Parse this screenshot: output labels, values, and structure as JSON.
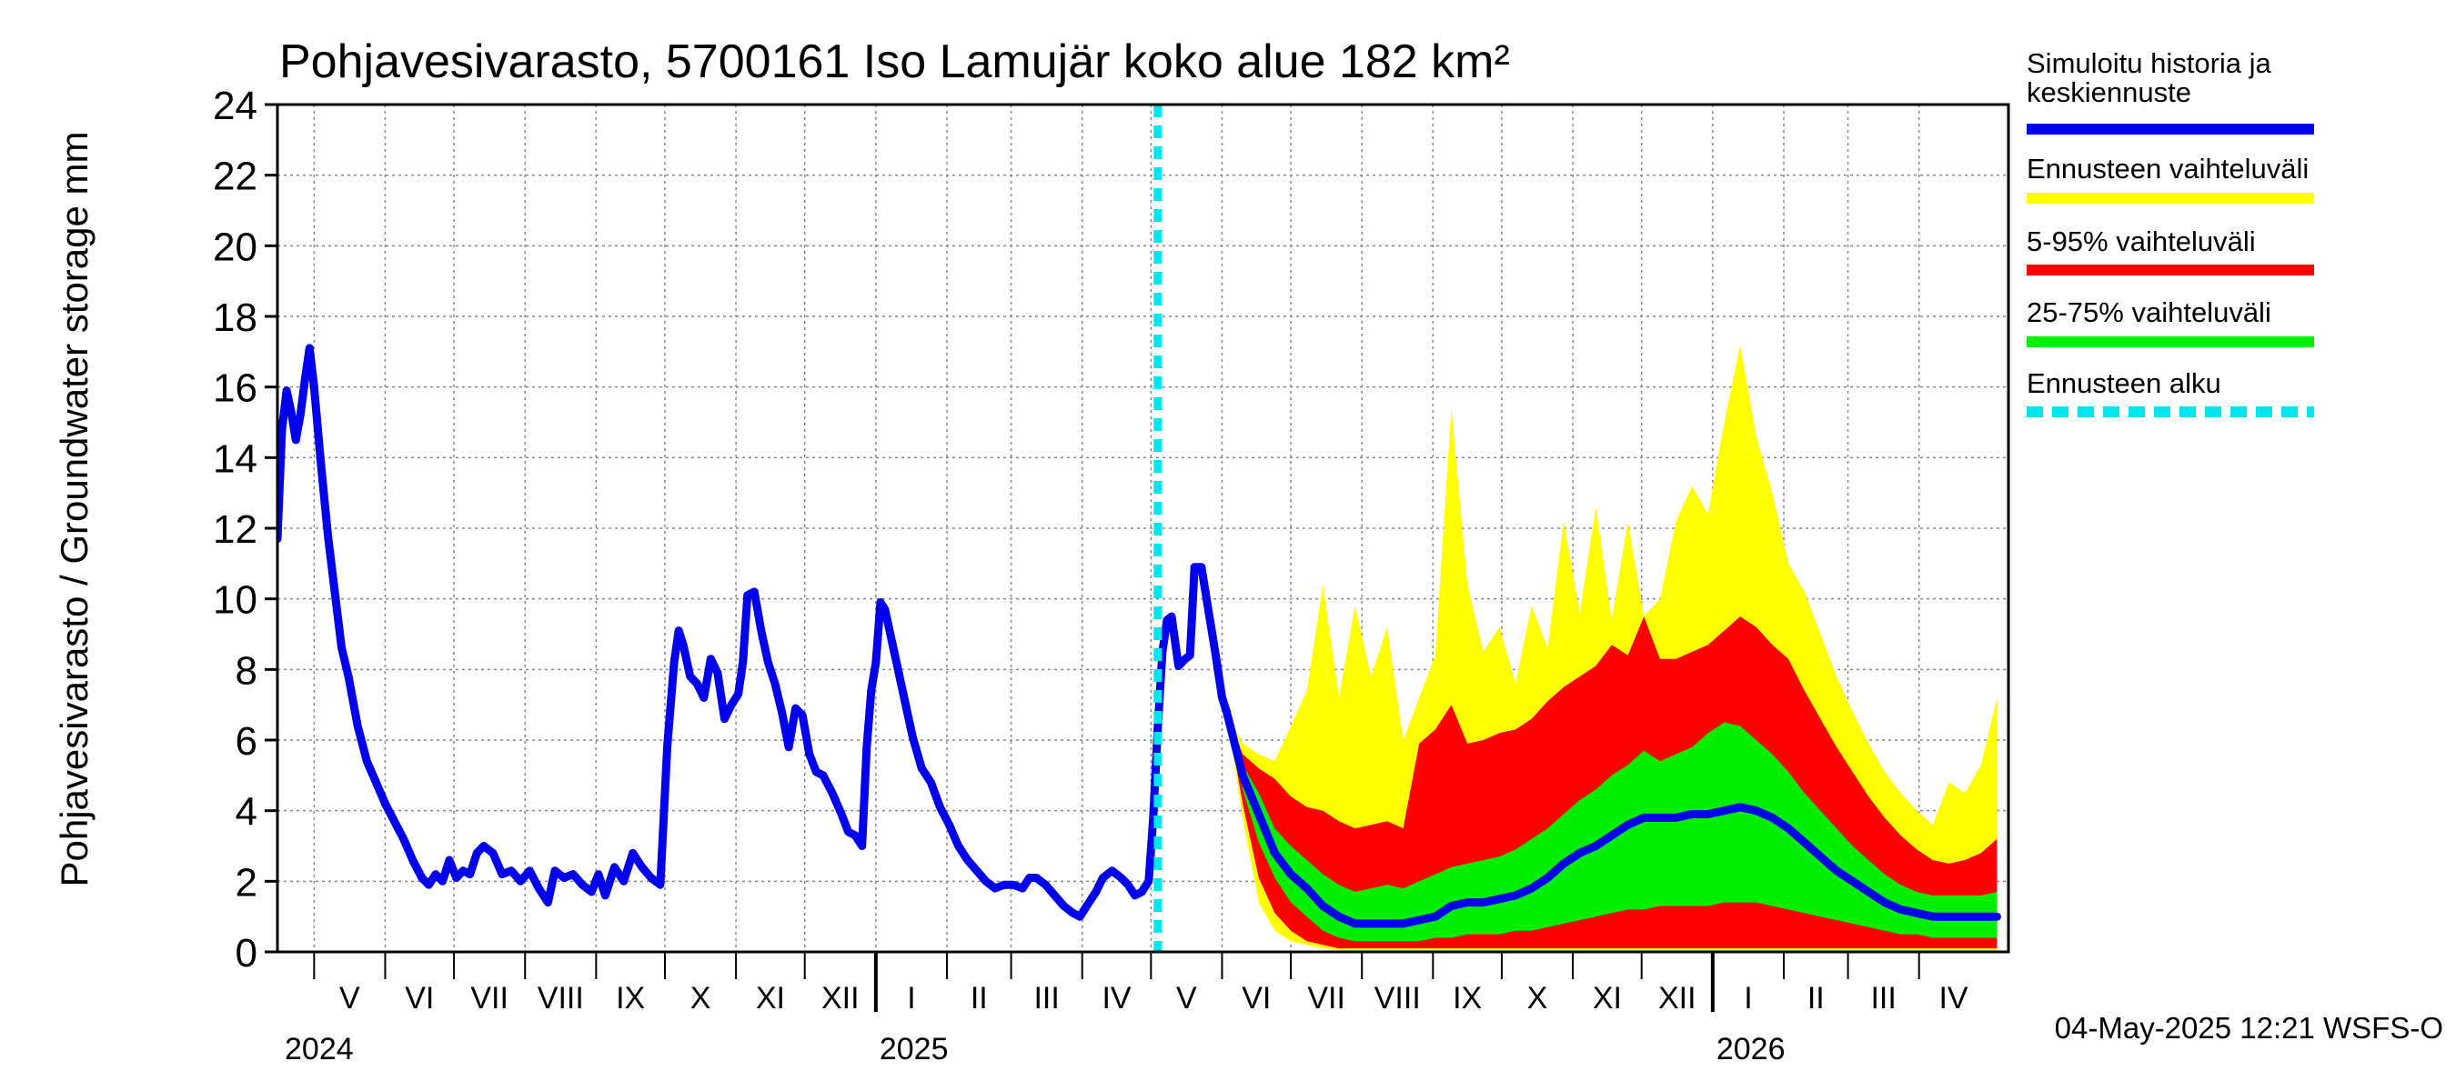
{
  "chart_data": {
    "type": "area",
    "title": "Pohjavesivarasto, 5700161 Iso Lamujär koko alue 182 km²",
    "ylabel": "Pohjavesivarasto / Groundwater storage   mm",
    "ylim": [
      0,
      24
    ],
    "yticks": [
      "0",
      "2",
      "4",
      "6",
      "8",
      "10",
      "12",
      "14",
      "16",
      "18",
      "20",
      "22",
      "24"
    ],
    "grid": true,
    "xlim": [
      "2024-04-15",
      "2026-05-10"
    ],
    "months": [
      {
        "label": "V",
        "start": "2024-05-01",
        "end": "2024-06-01"
      },
      {
        "label": "VI",
        "start": "2024-06-01",
        "end": "2024-07-01"
      },
      {
        "label": "VII",
        "start": "2024-07-01",
        "end": "2024-08-01"
      },
      {
        "label": "VIII",
        "start": "2024-08-01",
        "end": "2024-09-01"
      },
      {
        "label": "IX",
        "start": "2024-09-01",
        "end": "2024-10-01"
      },
      {
        "label": "X",
        "start": "2024-10-01",
        "end": "2024-11-01"
      },
      {
        "label": "XI",
        "start": "2024-11-01",
        "end": "2024-12-01"
      },
      {
        "label": "XII",
        "start": "2024-12-01",
        "end": "2025-01-01"
      },
      {
        "label": "I",
        "start": "2025-01-01",
        "end": "2025-02-01"
      },
      {
        "label": "II",
        "start": "2025-02-01",
        "end": "2025-03-01"
      },
      {
        "label": "III",
        "start": "2025-03-01",
        "end": "2025-04-01"
      },
      {
        "label": "IV",
        "start": "2025-04-01",
        "end": "2025-05-01"
      },
      {
        "label": "V",
        "start": "2025-05-01",
        "end": "2025-06-01"
      },
      {
        "label": "VI",
        "start": "2025-06-01",
        "end": "2025-07-01"
      },
      {
        "label": "VII",
        "start": "2025-07-01",
        "end": "2025-08-01"
      },
      {
        "label": "VIII",
        "start": "2025-08-01",
        "end": "2025-09-01"
      },
      {
        "label": "IX",
        "start": "2025-09-01",
        "end": "2025-10-01"
      },
      {
        "label": "X",
        "start": "2025-10-01",
        "end": "2025-11-01"
      },
      {
        "label": "XI",
        "start": "2025-11-01",
        "end": "2025-12-01"
      },
      {
        "label": "XII",
        "start": "2025-12-01",
        "end": "2026-01-01"
      },
      {
        "label": "I",
        "start": "2026-01-01",
        "end": "2026-02-01"
      },
      {
        "label": "II",
        "start": "2026-02-01",
        "end": "2026-03-01"
      },
      {
        "label": "III",
        "start": "2026-03-01",
        "end": "2026-04-01"
      },
      {
        "label": "IV",
        "start": "2026-04-01",
        "end": "2026-05-01"
      }
    ],
    "years": [
      {
        "label": "2024",
        "date": "2024-04-15"
      },
      {
        "label": "2025",
        "date": "2025-01-01"
      },
      {
        "label": "2026",
        "date": "2026-01-01"
      }
    ],
    "forecast_start": "2025-05-04",
    "history": {
      "name": "Simuloitu historia ja keskiennuste",
      "color": "#0000ee",
      "points": [
        [
          "2024-04-15",
          11.7
        ],
        [
          "2024-04-17",
          14.8
        ],
        [
          "2024-04-19",
          15.9
        ],
        [
          "2024-04-21",
          15.3
        ],
        [
          "2024-04-23",
          14.5
        ],
        [
          "2024-04-25",
          15.2
        ],
        [
          "2024-04-27",
          16.2
        ],
        [
          "2024-04-29",
          17.1
        ],
        [
          "2024-05-01",
          16.0
        ],
        [
          "2024-05-04",
          13.8
        ],
        [
          "2024-05-07",
          11.8
        ],
        [
          "2024-05-10",
          10.2
        ],
        [
          "2024-05-13",
          8.6
        ],
        [
          "2024-05-16",
          7.8
        ],
        [
          "2024-05-20",
          6.4
        ],
        [
          "2024-05-24",
          5.4
        ],
        [
          "2024-05-28",
          4.8
        ],
        [
          "2024-06-01",
          4.2
        ],
        [
          "2024-06-05",
          3.7
        ],
        [
          "2024-06-09",
          3.2
        ],
        [
          "2024-06-13",
          2.6
        ],
        [
          "2024-06-17",
          2.1
        ],
        [
          "2024-06-20",
          1.9
        ],
        [
          "2024-06-23",
          2.2
        ],
        [
          "2024-06-26",
          2.0
        ],
        [
          "2024-06-29",
          2.6
        ],
        [
          "2024-07-02",
          2.1
        ],
        [
          "2024-07-05",
          2.3
        ],
        [
          "2024-07-08",
          2.2
        ],
        [
          "2024-07-11",
          2.8
        ],
        [
          "2024-07-14",
          3.0
        ],
        [
          "2024-07-18",
          2.8
        ],
        [
          "2024-07-22",
          2.2
        ],
        [
          "2024-07-26",
          2.3
        ],
        [
          "2024-07-30",
          2.0
        ],
        [
          "2024-08-03",
          2.3
        ],
        [
          "2024-08-07",
          1.8
        ],
        [
          "2024-08-11",
          1.4
        ],
        [
          "2024-08-14",
          2.3
        ],
        [
          "2024-08-18",
          2.1
        ],
        [
          "2024-08-22",
          2.2
        ],
        [
          "2024-08-26",
          1.9
        ],
        [
          "2024-08-30",
          1.7
        ],
        [
          "2024-09-02",
          2.2
        ],
        [
          "2024-09-05",
          1.6
        ],
        [
          "2024-09-09",
          2.4
        ],
        [
          "2024-09-13",
          2.0
        ],
        [
          "2024-09-17",
          2.8
        ],
        [
          "2024-09-21",
          2.4
        ],
        [
          "2024-09-25",
          2.1
        ],
        [
          "2024-09-29",
          1.9
        ],
        [
          "2024-10-02",
          5.8
        ],
        [
          "2024-10-05",
          8.2
        ],
        [
          "2024-10-07",
          9.1
        ],
        [
          "2024-10-09",
          8.7
        ],
        [
          "2024-10-12",
          7.8
        ],
        [
          "2024-10-15",
          7.6
        ],
        [
          "2024-10-18",
          7.2
        ],
        [
          "2024-10-21",
          8.3
        ],
        [
          "2024-10-24",
          7.9
        ],
        [
          "2024-10-27",
          6.6
        ],
        [
          "2024-10-30",
          7.0
        ],
        [
          "2024-11-02",
          7.3
        ],
        [
          "2024-11-04",
          8.2
        ],
        [
          "2024-11-06",
          10.1
        ],
        [
          "2024-11-09",
          10.2
        ],
        [
          "2024-11-12",
          9.1
        ],
        [
          "2024-11-15",
          8.2
        ],
        [
          "2024-11-18",
          7.6
        ],
        [
          "2024-11-21",
          6.8
        ],
        [
          "2024-11-24",
          5.8
        ],
        [
          "2024-11-27",
          6.9
        ],
        [
          "2024-11-30",
          6.7
        ],
        [
          "2024-12-03",
          5.6
        ],
        [
          "2024-12-06",
          5.1
        ],
        [
          "2024-12-09",
          5.0
        ],
        [
          "2024-12-13",
          4.5
        ],
        [
          "2024-12-17",
          3.9
        ],
        [
          "2024-12-20",
          3.4
        ],
        [
          "2024-12-23",
          3.3
        ],
        [
          "2024-12-26",
          3.0
        ],
        [
          "2024-12-28",
          5.8
        ],
        [
          "2024-12-30",
          7.4
        ],
        [
          "2025-01-01",
          8.2
        ],
        [
          "2025-01-03",
          9.9
        ],
        [
          "2025-01-05",
          9.7
        ],
        [
          "2025-01-09",
          8.5
        ],
        [
          "2025-01-13",
          7.3
        ],
        [
          "2025-01-17",
          6.1
        ],
        [
          "2025-01-21",
          5.2
        ],
        [
          "2025-01-25",
          4.8
        ],
        [
          "2025-01-29",
          4.1
        ],
        [
          "2025-02-02",
          3.6
        ],
        [
          "2025-02-06",
          3.0
        ],
        [
          "2025-02-10",
          2.6
        ],
        [
          "2025-02-14",
          2.3
        ],
        [
          "2025-02-18",
          2.0
        ],
        [
          "2025-02-22",
          1.8
        ],
        [
          "2025-02-26",
          1.9
        ],
        [
          "2025-03-02",
          1.9
        ],
        [
          "2025-03-06",
          1.8
        ],
        [
          "2025-03-09",
          2.1
        ],
        [
          "2025-03-12",
          2.1
        ],
        [
          "2025-03-16",
          1.9
        ],
        [
          "2025-03-20",
          1.6
        ],
        [
          "2025-03-24",
          1.3
        ],
        [
          "2025-03-28",
          1.1
        ],
        [
          "2025-03-31",
          1.0
        ],
        [
          "2025-04-03",
          1.3
        ],
        [
          "2025-04-07",
          1.7
        ],
        [
          "2025-04-10",
          2.1
        ],
        [
          "2025-04-14",
          2.3
        ],
        [
          "2025-04-18",
          2.1
        ],
        [
          "2025-04-21",
          1.9
        ],
        [
          "2025-04-24",
          1.6
        ],
        [
          "2025-04-27",
          1.7
        ],
        [
          "2025-04-30",
          2.0
        ],
        [
          "2025-05-02",
          3.8
        ],
        [
          "2025-05-04",
          6.4
        ],
        [
          "2025-05-06",
          8.5
        ],
        [
          "2025-05-08",
          9.4
        ],
        [
          "2025-05-10",
          9.5
        ],
        [
          "2025-05-13",
          8.1
        ],
        [
          "2025-05-16",
          8.3
        ],
        [
          "2025-05-18",
          8.4
        ],
        [
          "2025-05-20",
          10.9
        ],
        [
          "2025-05-23",
          10.9
        ],
        [
          "2025-05-26",
          9.7
        ],
        [
          "2025-05-29",
          8.5
        ],
        [
          "2025-06-01",
          7.2
        ],
        [
          "2025-06-03",
          6.8
        ]
      ]
    },
    "forecast": {
      "median_name": "Simuloitu historia ja keskiennuste",
      "bands": [
        {
          "name": "Ennusteen vaihteluväli",
          "color": "#ffff00"
        },
        {
          "name": "5-95% vaihteluväli",
          "color": "#ff0000"
        },
        {
          "name": "25-75% vaihteluväli",
          "color": "#00ee00"
        }
      ],
      "columns": [
        "date",
        "min",
        "p5",
        "p25",
        "median",
        "p75",
        "p95",
        "max"
      ],
      "rows": [
        [
          "2025-06-03",
          6.8,
          6.8,
          6.8,
          6.8,
          6.8,
          6.8,
          6.8
        ],
        [
          "2025-06-10",
          3.8,
          4.2,
          4.6,
          5.0,
          5.3,
          5.6,
          5.9
        ],
        [
          "2025-06-17",
          1.4,
          2.1,
          3.1,
          3.9,
          4.5,
          5.2,
          5.6
        ],
        [
          "2025-06-24",
          0.6,
          1.1,
          2.1,
          2.8,
          3.5,
          4.9,
          5.4
        ],
        [
          "2025-07-01",
          0.3,
          0.6,
          1.4,
          2.2,
          3.0,
          4.4,
          6.4
        ],
        [
          "2025-07-08",
          0.2,
          0.3,
          1.0,
          1.8,
          2.6,
          4.1,
          7.4
        ],
        [
          "2025-07-15",
          0.1,
          0.2,
          0.6,
          1.3,
          2.2,
          4.0,
          10.4
        ],
        [
          "2025-07-22",
          0.05,
          0.1,
          0.4,
          1.0,
          1.9,
          3.7,
          7.2
        ],
        [
          "2025-07-29",
          0.05,
          0.1,
          0.3,
          0.8,
          1.7,
          3.5,
          9.8
        ],
        [
          "2025-08-05",
          0.05,
          0.1,
          0.3,
          0.8,
          1.8,
          3.6,
          7.8
        ],
        [
          "2025-08-12",
          0.05,
          0.1,
          0.3,
          0.8,
          1.9,
          3.7,
          9.2
        ],
        [
          "2025-08-19",
          0.05,
          0.1,
          0.3,
          0.8,
          1.8,
          3.5,
          6.0
        ],
        [
          "2025-08-26",
          0.05,
          0.1,
          0.3,
          0.9,
          2.0,
          5.9,
          7.2
        ],
        [
          "2025-09-02",
          0.05,
          0.1,
          0.4,
          1.0,
          2.2,
          6.3,
          8.4
        ],
        [
          "2025-09-09",
          0.05,
          0.1,
          0.4,
          1.3,
          2.4,
          7.0,
          15.4
        ],
        [
          "2025-09-16",
          0.05,
          0.1,
          0.5,
          1.4,
          2.5,
          5.9,
          10.4
        ],
        [
          "2025-09-23",
          0.05,
          0.1,
          0.5,
          1.4,
          2.6,
          6.0,
          8.5
        ],
        [
          "2025-09-30",
          0.05,
          0.1,
          0.5,
          1.5,
          2.7,
          6.2,
          9.2
        ],
        [
          "2025-10-07",
          0.05,
          0.1,
          0.6,
          1.6,
          2.9,
          6.3,
          7.6
        ],
        [
          "2025-10-14",
          0.05,
          0.1,
          0.6,
          1.8,
          3.2,
          6.6,
          9.8
        ],
        [
          "2025-10-21",
          0.05,
          0.1,
          0.7,
          2.1,
          3.5,
          7.1,
          8.6
        ],
        [
          "2025-10-28",
          0.05,
          0.1,
          0.8,
          2.5,
          3.9,
          7.5,
          12.2
        ],
        [
          "2025-11-04",
          0.05,
          0.1,
          0.9,
          2.8,
          4.3,
          7.8,
          9.6
        ],
        [
          "2025-11-11",
          0.05,
          0.1,
          1.0,
          3.0,
          4.6,
          8.1,
          12.6
        ],
        [
          "2025-11-18",
          0.05,
          0.1,
          1.1,
          3.3,
          5.0,
          8.7,
          9.4
        ],
        [
          "2025-11-25",
          0.05,
          0.1,
          1.2,
          3.6,
          5.3,
          8.4,
          12.2
        ],
        [
          "2025-12-02",
          0.05,
          0.1,
          1.2,
          3.8,
          5.7,
          9.5,
          9.5
        ],
        [
          "2025-12-09",
          0.05,
          0.1,
          1.3,
          3.8,
          5.4,
          8.3,
          10.0
        ],
        [
          "2025-12-16",
          0.05,
          0.1,
          1.3,
          3.8,
          5.6,
          8.3,
          12.2
        ],
        [
          "2025-12-23",
          0.05,
          0.1,
          1.3,
          3.9,
          5.8,
          8.5,
          13.2
        ],
        [
          "2025-12-30",
          0.05,
          0.1,
          1.3,
          3.9,
          6.2,
          8.7,
          12.4
        ],
        [
          "2026-01-06",
          0.05,
          0.1,
          1.4,
          4.0,
          6.5,
          9.1,
          15.0
        ],
        [
          "2026-01-13",
          0.05,
          0.1,
          1.4,
          4.1,
          6.4,
          9.5,
          17.2
        ],
        [
          "2026-01-20",
          0.05,
          0.1,
          1.4,
          4.0,
          6.0,
          9.2,
          14.6
        ],
        [
          "2026-01-27",
          0.05,
          0.1,
          1.3,
          3.8,
          5.6,
          8.7,
          13.0
        ],
        [
          "2026-02-03",
          0.05,
          0.1,
          1.2,
          3.5,
          5.1,
          8.3,
          11.0
        ],
        [
          "2026-02-10",
          0.05,
          0.1,
          1.1,
          3.1,
          4.5,
          7.4,
          10.2
        ],
        [
          "2026-02-17",
          0.05,
          0.1,
          1.0,
          2.7,
          4.0,
          6.6,
          9.0
        ],
        [
          "2026-02-24",
          0.05,
          0.1,
          0.9,
          2.3,
          3.5,
          5.8,
          7.8
        ],
        [
          "2026-03-03",
          0.05,
          0.1,
          0.8,
          2.0,
          3.0,
          5.1,
          6.8
        ],
        [
          "2026-03-10",
          0.05,
          0.1,
          0.7,
          1.7,
          2.6,
          4.4,
          5.9
        ],
        [
          "2026-03-17",
          0.05,
          0.1,
          0.6,
          1.4,
          2.2,
          3.8,
          5.1
        ],
        [
          "2026-03-24",
          0.05,
          0.1,
          0.5,
          1.2,
          1.9,
          3.3,
          4.5
        ],
        [
          "2026-03-31",
          0.05,
          0.1,
          0.5,
          1.1,
          1.7,
          2.9,
          4.0
        ],
        [
          "2026-04-07",
          0.05,
          0.1,
          0.4,
          1.0,
          1.6,
          2.6,
          3.6
        ],
        [
          "2026-04-14",
          0.05,
          0.1,
          0.4,
          1.0,
          1.6,
          2.5,
          4.8
        ],
        [
          "2026-04-21",
          0.05,
          0.1,
          0.4,
          1.0,
          1.6,
          2.6,
          4.5
        ],
        [
          "2026-04-28",
          0.05,
          0.1,
          0.4,
          1.0,
          1.6,
          2.8,
          5.3
        ],
        [
          "2026-05-05",
          0.05,
          0.1,
          0.4,
          1.0,
          1.7,
          3.2,
          7.2
        ]
      ]
    },
    "legend": [
      {
        "label": "Simuloitu historia ja keskiennuste",
        "color": "#0000ee",
        "style": "solid"
      },
      {
        "label": "Ennusteen vaihteluväli",
        "color": "#ffff00",
        "style": "solid"
      },
      {
        "label": "5-95% vaihteluväli",
        "color": "#ff0000",
        "style": "solid"
      },
      {
        "label": "25-75% vaihteluväli",
        "color": "#00ee00",
        "style": "solid"
      },
      {
        "label": "Ennusteen alku",
        "color": "#00e5ee",
        "style": "dashed"
      }
    ],
    "legend_position": "right",
    "footer": "04-May-2025 12:21 WSFS-O"
  }
}
